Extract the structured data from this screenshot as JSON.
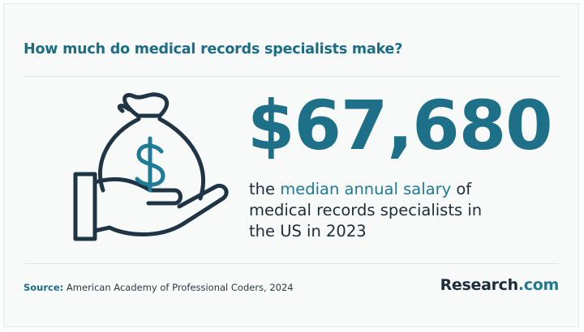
{
  "header": {
    "title": "How much do medical records specialists make?"
  },
  "figure": {
    "value": "$67,680",
    "description": {
      "before": "the ",
      "highlight": "median annual salary",
      "after": " of medical records specialists in the US in 2023"
    }
  },
  "footer": {
    "source_label": "Source:",
    "source": " American Academy of Professional Coders, 2024",
    "logo": {
      "name": "Research",
      "suffix": ".com"
    }
  }
}
